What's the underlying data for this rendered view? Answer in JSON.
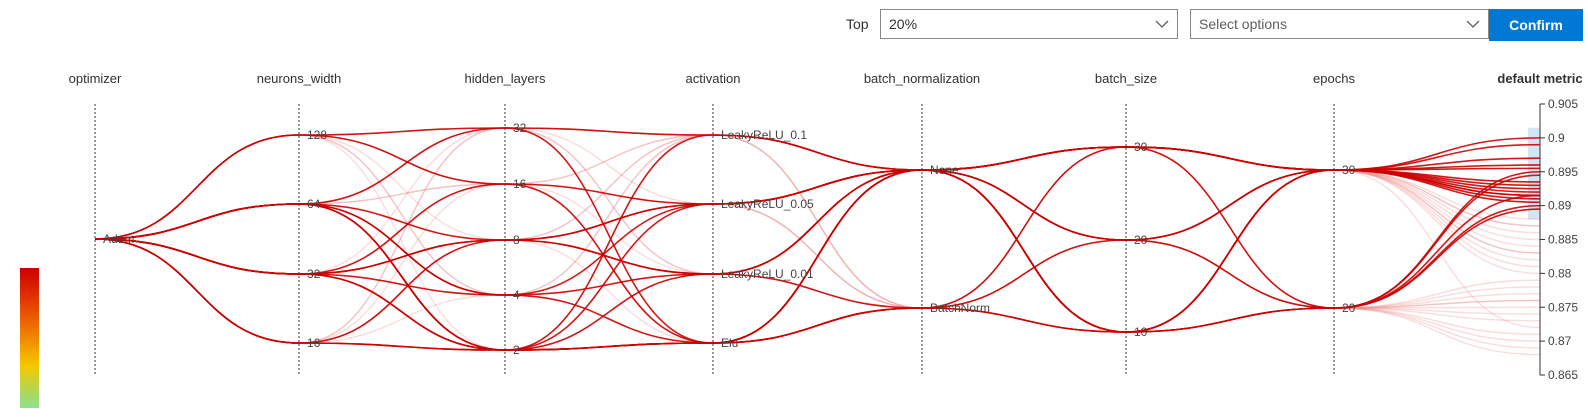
{
  "controls": {
    "top_label": "Top",
    "top_value": "20%",
    "options_placeholder": "Select options",
    "confirm_label": "Confirm"
  },
  "chart_data": {
    "type": "parallel_coordinates",
    "axes": [
      {
        "name": "optimizer",
        "ticks": [
          "Adam"
        ]
      },
      {
        "name": "neurons_width",
        "ticks": [
          "128",
          "64",
          "32",
          "16"
        ]
      },
      {
        "name": "hidden_layers",
        "ticks": [
          "32",
          "16",
          "8",
          "4",
          "2"
        ]
      },
      {
        "name": "activation",
        "ticks": [
          "LeakyReLU_0.1",
          "LeakyReLU_0.05",
          "LeakyReLU_0.01",
          "Elu"
        ]
      },
      {
        "name": "batch_normalization",
        "ticks": [
          "None",
          "BatchNorm"
        ]
      },
      {
        "name": "batch_size",
        "ticks": [
          "30",
          "20",
          "10"
        ]
      },
      {
        "name": "epochs",
        "ticks": [
          "30",
          "20"
        ]
      },
      {
        "name": "default metric",
        "ticks": [
          "0.905",
          "0.9",
          "0.895",
          "0.89",
          "0.885",
          "0.88",
          "0.875",
          "0.87",
          "0.865"
        ],
        "range": [
          0.865,
          0.905
        ]
      }
    ],
    "highlighted": [
      [
        "Adam",
        "128",
        "32",
        "LeakyReLU_0.1",
        "None",
        "30",
        "30",
        0.9
      ],
      [
        "Adam",
        "128",
        "16",
        "LeakyReLU_0.05",
        "None",
        "30",
        "30",
        0.8955
      ],
      [
        "Adam",
        "64",
        "32",
        "Elu",
        "None",
        "20",
        "30",
        0.8925
      ],
      [
        "Adam",
        "64",
        "2",
        "Elu",
        "BatchNorm",
        "10",
        "20",
        0.8895
      ],
      [
        "Adam",
        "64",
        "2",
        "LeakyReLU_0.01",
        "None",
        "30",
        "30",
        0.899
      ],
      [
        "Adam",
        "64",
        "8",
        "LeakyReLU_0.05",
        "None",
        "10",
        "30",
        0.892
      ],
      [
        "Adam",
        "64",
        "4",
        "Elu",
        "None",
        "20",
        "20",
        0.895
      ],
      [
        "Adam",
        "64",
        "2",
        "LeakyReLU_0.1",
        "None",
        "10",
        "30",
        0.891
      ],
      [
        "Adam",
        "32",
        "16",
        "Elu",
        "BatchNorm",
        "30",
        "30",
        0.8905
      ],
      [
        "Adam",
        "32",
        "2",
        "LeakyReLU_0.05",
        "None",
        "30",
        "20",
        0.8915
      ],
      [
        "Adam",
        "32",
        "8",
        "LeakyReLU_0.01",
        "None",
        "20",
        "30",
        0.8935
      ],
      [
        "Adam",
        "32",
        "4",
        "LeakyReLU_0.05",
        "None",
        "10",
        "20",
        0.8945
      ],
      [
        "Adam",
        "32",
        "2",
        "Elu",
        "None",
        "10",
        "30",
        0.896
      ],
      [
        "Adam",
        "32",
        "8",
        "LeakyReLU_0.01",
        "BatchNorm",
        "20",
        "30",
        0.8915
      ],
      [
        "Adam",
        "16",
        "8",
        "LeakyReLU_0.05",
        "None",
        "30",
        "30",
        0.897
      ],
      [
        "Adam",
        "16",
        "2",
        "Elu",
        "None",
        "10",
        "20",
        0.89
      ],
      [
        "Adam",
        "16",
        "2",
        "Elu",
        "BatchNorm",
        "10",
        "30",
        0.8915
      ],
      [
        "Adam",
        "64",
        "4",
        "LeakyReLU_0.01",
        "None",
        "30",
        "30",
        0.893
      ]
    ],
    "faded": [
      [
        "Adam",
        "128",
        "16",
        "LeakyReLU_0.1",
        "None",
        "30",
        "30",
        0.882
      ],
      [
        "Adam",
        "128",
        "8",
        "LeakyReLU_0.05",
        "BatchNorm",
        "20",
        "20",
        0.876
      ],
      [
        "Adam",
        "128",
        "2",
        "LeakyReLU_0.01",
        "None",
        "10",
        "30",
        0.872
      ],
      [
        "Adam",
        "128",
        "4",
        "Elu",
        "BatchNorm",
        "30",
        "20",
        0.879
      ],
      [
        "Adam",
        "64",
        "16",
        "LeakyReLU_0.1",
        "None",
        "20",
        "30",
        0.885
      ],
      [
        "Adam",
        "64",
        "32",
        "LeakyReLU_0.01",
        "BatchNorm",
        "10",
        "20",
        0.874
      ],
      [
        "Adam",
        "64",
        "8",
        "LeakyReLU_0.1",
        "None",
        "30",
        "30",
        0.887
      ],
      [
        "Adam",
        "32",
        "32",
        "LeakyReLU_0.1",
        "BatchNorm",
        "20",
        "20",
        0.869
      ],
      [
        "Adam",
        "32",
        "16",
        "LeakyReLU_0.05",
        "None",
        "10",
        "30",
        0.883
      ],
      [
        "Adam",
        "32",
        "4",
        "LeakyReLU_0.1",
        "BatchNorm",
        "30",
        "20",
        0.877
      ],
      [
        "Adam",
        "16",
        "32",
        "LeakyReLU_0.1",
        "None",
        "20",
        "30",
        0.881
      ],
      [
        "Adam",
        "16",
        "16",
        "LeakyReLU_0.05",
        "BatchNorm",
        "30",
        "20",
        0.873
      ],
      [
        "Adam",
        "16",
        "4",
        "LeakyReLU_0.01",
        "None",
        "20",
        "30",
        0.886
      ],
      [
        "Adam",
        "16",
        "8",
        "LeakyReLU_0.1",
        "BatchNorm",
        "10",
        "20",
        0.868
      ],
      [
        "Adam",
        "128",
        "32",
        "LeakyReLU_0.05",
        "None",
        "20",
        "20",
        0.878
      ],
      [
        "Adam",
        "64",
        "16",
        "Elu",
        "BatchNorm",
        "20",
        "30",
        0.884
      ],
      [
        "Adam",
        "32",
        "2",
        "LeakyReLU_0.1",
        "None",
        "20",
        "20",
        0.871
      ],
      [
        "Adam",
        "16",
        "32",
        "LeakyReLU_0.01",
        "None",
        "30",
        "30",
        0.888
      ],
      [
        "Adam",
        "128",
        "4",
        "LeakyReLU_0.1",
        "None",
        "10",
        "20",
        0.875
      ],
      [
        "Adam",
        "64",
        "2",
        "LeakyReLU_0.05",
        "BatchNorm",
        "30",
        "30",
        0.88
      ],
      [
        "Adam",
        "32",
        "16",
        "LeakyReLU_0.01",
        "None",
        "20",
        "20",
        0.87
      ],
      [
        "Adam",
        "16",
        "8",
        "Elu",
        "None",
        "30",
        "30",
        0.887
      ],
      [
        "Adam",
        "128",
        "16",
        "Elu",
        "None",
        "10",
        "30",
        0.883
      ],
      [
        "Adam",
        "64",
        "32",
        "LeakyReLU_0.1",
        "None",
        "20",
        "20",
        0.876
      ]
    ],
    "colors": {
      "highlight": "#cc0000",
      "faded": "#e88080",
      "axis": "#333333",
      "brush": "#c7e0f4"
    },
    "color_scale": [
      "#cc0000",
      "#f07800",
      "#f5c800",
      "#90e090"
    ]
  }
}
